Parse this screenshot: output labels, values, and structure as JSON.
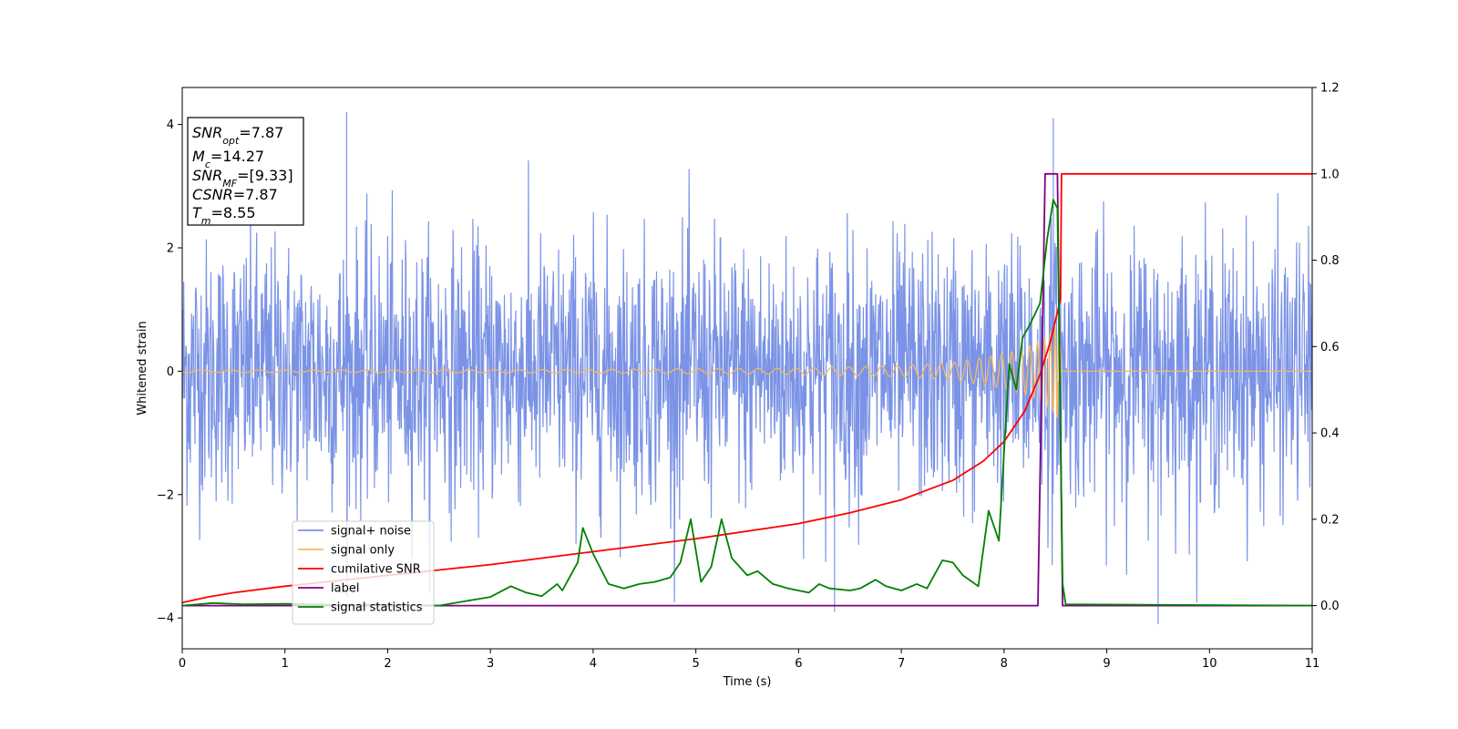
{
  "chart_data": {
    "type": "line",
    "xlabel": "Time (s)",
    "ylabel": "Whitened strain",
    "xlim": [
      0,
      11
    ],
    "ylim": [
      -4.5,
      4.6
    ],
    "y2lim": [
      -0.1,
      1.2
    ],
    "x_ticks": [
      "0",
      "1",
      "2",
      "3",
      "4",
      "5",
      "6",
      "7",
      "8",
      "9",
      "10",
      "11"
    ],
    "y_ticks": [
      "−4",
      "−2",
      "0",
      "2",
      "4"
    ],
    "y2_ticks": [
      "0.0",
      "0.2",
      "0.4",
      "0.6",
      "0.8",
      "1.0",
      "1.2"
    ],
    "grid": false,
    "legend_position": "lower-left",
    "annotation": {
      "snr_opt": {
        "base": "SNR",
        "sub": "opt",
        "value": "=7.87"
      },
      "mc": {
        "base": "M",
        "sub": "c",
        "value": "=14.27"
      },
      "snr_mf": {
        "base": "SNR",
        "sub": "MF",
        "value": "=[9.33]"
      },
      "csnr": {
        "base": "CSNR",
        "value": "=7.87"
      },
      "tm": {
        "base": "T",
        "sub": "m",
        "value": "=8.55"
      }
    },
    "series": [
      {
        "name": "signal+ noise",
        "axis": "left",
        "color": "#7b93e6",
        "style": "gaussian noise band plus chirp",
        "noise_std": 1.05,
        "x_range": [
          0,
          11
        ],
        "notable_peaks": [
          [
            1.6,
            4.2
          ],
          [
            8.48,
            4.1
          ],
          [
            6.35,
            -3.9
          ],
          [
            9.5,
            -4.1
          ]
        ]
      },
      {
        "name": "signal only",
        "axis": "left",
        "color": "#f4b860",
        "style": "chirp",
        "x": [
          0,
          2,
          4,
          6,
          7,
          7.5,
          8,
          8.2,
          8.4,
          8.5,
          8.55
        ],
        "amplitude": [
          0.02,
          0.02,
          0.03,
          0.05,
          0.09,
          0.14,
          0.28,
          0.38,
          0.52,
          0.72,
          0.85
        ],
        "merger_time": 8.55
      },
      {
        "name": "cumilative SNR",
        "axis": "right",
        "color": "#ff0000",
        "x": [
          0,
          0.25,
          0.5,
          1,
          2,
          3,
          4,
          5,
          6,
          6.5,
          7,
          7.5,
          7.8,
          8.0,
          8.2,
          8.35,
          8.45,
          8.5,
          8.55,
          8.56,
          11
        ],
        "y": [
          0.007,
          0.02,
          0.03,
          0.045,
          0.07,
          0.095,
          0.125,
          0.155,
          0.19,
          0.215,
          0.245,
          0.29,
          0.335,
          0.38,
          0.45,
          0.535,
          0.61,
          0.66,
          0.71,
          1.0,
          1.0
        ]
      },
      {
        "name": "label",
        "axis": "right",
        "color": "#800080",
        "x": [
          0,
          8.33,
          8.4,
          8.52,
          8.57,
          11
        ],
        "y": [
          0,
          0,
          1.0,
          1.0,
          0,
          0
        ]
      },
      {
        "name": "signal statistics",
        "axis": "right",
        "color": "#008000",
        "x": [
          0,
          0.3,
          0.6,
          1,
          1.5,
          2,
          2.5,
          2.8,
          3.0,
          3.2,
          3.35,
          3.5,
          3.65,
          3.7,
          3.85,
          3.9,
          4.0,
          4.15,
          4.3,
          4.45,
          4.6,
          4.75,
          4.85,
          4.95,
          5.05,
          5.15,
          5.25,
          5.35,
          5.5,
          5.6,
          5.75,
          5.9,
          6.1,
          6.2,
          6.3,
          6.5,
          6.6,
          6.75,
          6.85,
          7.0,
          7.15,
          7.25,
          7.4,
          7.5,
          7.6,
          7.75,
          7.85,
          7.95,
          8.05,
          8.12,
          8.18,
          8.25,
          8.35,
          8.42,
          8.48,
          8.52,
          8.57,
          8.6,
          11
        ],
        "y": [
          0.0,
          0.006,
          0.003,
          0.004,
          0.002,
          0.003,
          0.0,
          0.012,
          0.02,
          0.045,
          0.03,
          0.022,
          0.05,
          0.035,
          0.1,
          0.18,
          0.12,
          0.05,
          0.04,
          0.05,
          0.055,
          0.065,
          0.1,
          0.2,
          0.055,
          0.09,
          0.2,
          0.11,
          0.07,
          0.08,
          0.05,
          0.04,
          0.03,
          0.05,
          0.04,
          0.035,
          0.04,
          0.06,
          0.045,
          0.035,
          0.05,
          0.04,
          0.105,
          0.1,
          0.07,
          0.045,
          0.22,
          0.15,
          0.56,
          0.5,
          0.62,
          0.65,
          0.7,
          0.85,
          0.94,
          0.92,
          0.05,
          0.003,
          0.0
        ]
      }
    ]
  }
}
